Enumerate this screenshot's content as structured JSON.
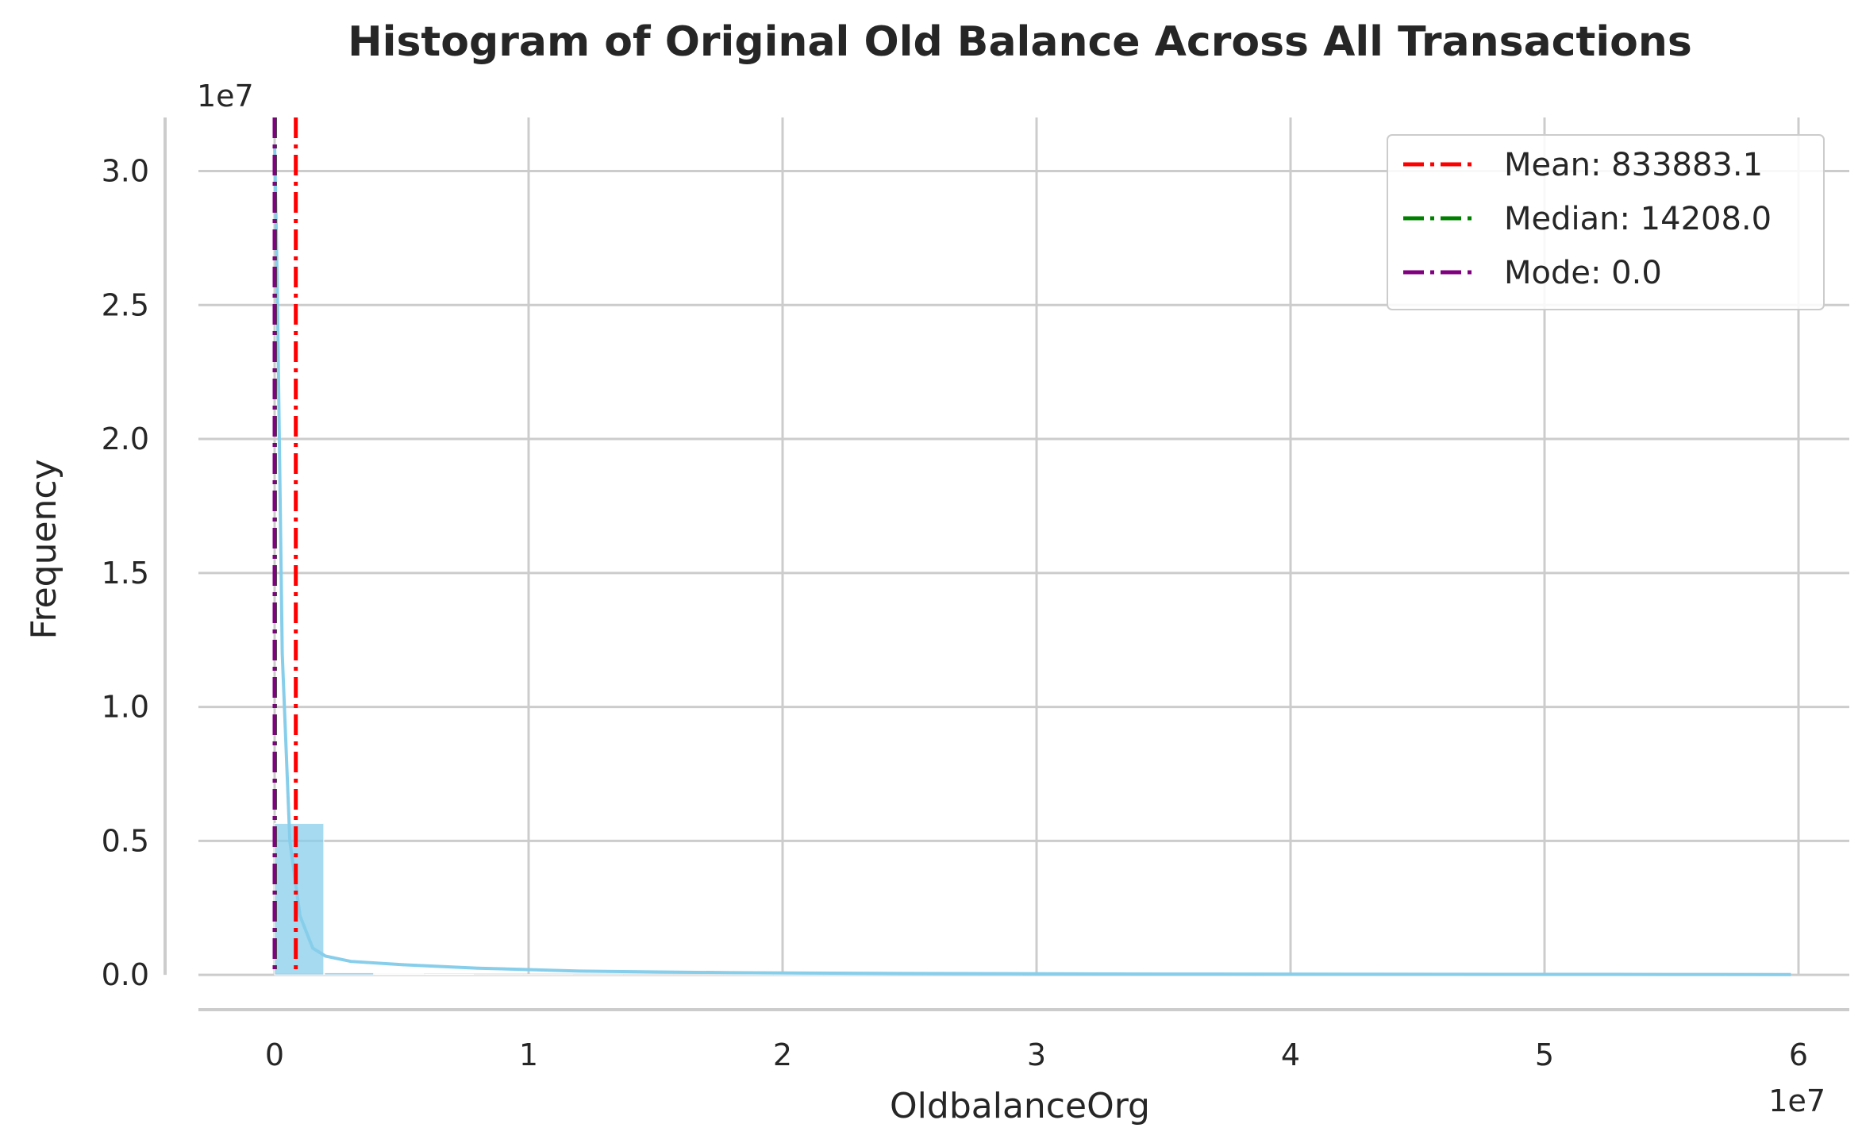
{
  "chart_data": {
    "type": "bar",
    "title": "Histogram of Original Old Balance Across All Transactions",
    "xlabel": "OldbalanceOrg",
    "ylabel": "Frequency",
    "x_offset_label": "1e7",
    "y_offset_label": "1e7",
    "xlim": [
      -0.3,
      6.2
    ],
    "ylim": [
      -0.13,
      3.2
    ],
    "xticks": [
      0,
      1,
      2,
      3,
      4,
      5,
      6
    ],
    "yticks": [
      0.0,
      0.5,
      1.0,
      1.5,
      2.0,
      2.5,
      3.0
    ],
    "xtick_labels": [
      "0",
      "1",
      "2",
      "3",
      "4",
      "5",
      "6"
    ],
    "ytick_labels": [
      "0.0",
      "0.5",
      "1.0",
      "1.5",
      "2.0",
      "2.5",
      "3.0"
    ],
    "grid": true,
    "legend_position": "top-right",
    "bars": {
      "bin_edges": [
        0.0,
        0.1965,
        0.393,
        0.5895,
        0.786,
        0.9825,
        1.179,
        1.3755,
        1.572,
        1.7685,
        1.965,
        2.1615,
        2.358,
        2.5545,
        2.751,
        2.9475,
        3.144,
        3.3405,
        3.537,
        3.7335,
        3.93,
        4.1265,
        4.323,
        4.5195,
        4.716,
        4.9125,
        5.109,
        5.3055,
        5.502,
        5.6985,
        5.895
      ],
      "values": [
        0.565,
        0.008,
        0.003,
        0.002,
        0.001,
        0.001,
        0.0005,
        0.0004,
        0.0003,
        0.0002,
        0.0002,
        0.0001,
        0.0001,
        0.0001,
        0.0001,
        0.0,
        0.0,
        0.0,
        0.0,
        0.0,
        0.0,
        0.0,
        0.0,
        0.0,
        0.0,
        0.0,
        0.0,
        0.0,
        0.0,
        0.0001
      ]
    },
    "kde": {
      "x": [
        0.0,
        0.01,
        0.03,
        0.06,
        0.1,
        0.15,
        0.2,
        0.3,
        0.5,
        0.8,
        1.2,
        1.8,
        2.5,
        3.5,
        4.5,
        5.5,
        5.97
      ],
      "y": [
        3.1,
        2.6,
        1.2,
        0.5,
        0.22,
        0.1,
        0.07,
        0.05,
        0.038,
        0.025,
        0.014,
        0.008,
        0.005,
        0.003,
        0.002,
        0.0015,
        0.001
      ]
    },
    "bar_color": "#87ceeb",
    "kde_color": "#87ceeb",
    "reference_lines": [
      {
        "name": "Mean: 833883.1",
        "x": 0.08338831,
        "color": "#ff0000"
      },
      {
        "name": "Median: 14208.0",
        "x": 0.0014208,
        "color": "#008000"
      },
      {
        "name": "Mode: 0.0",
        "x": 0.0,
        "color": "#800080"
      }
    ]
  }
}
